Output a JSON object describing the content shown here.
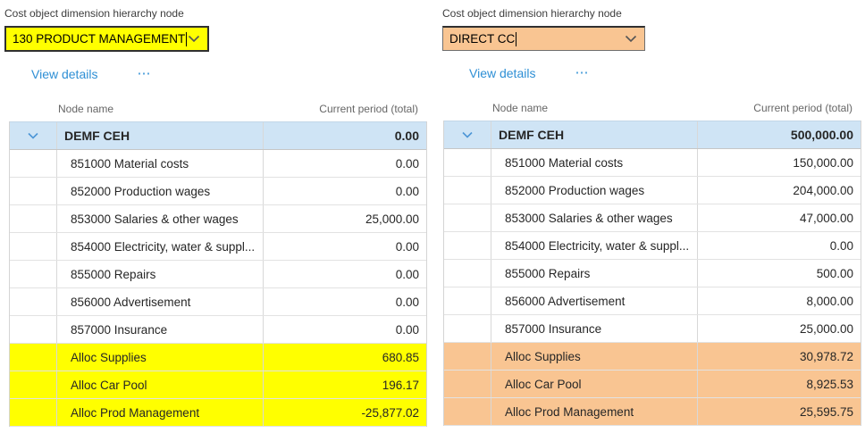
{
  "colors": {
    "link_blue": "#2e8fd5",
    "selected_row_blue": "#cfe4f5",
    "grid_chevron_blue": "#4d96d6",
    "left_highlight": "#ffff00",
    "right_highlight": "#f9c592"
  },
  "icons": {
    "combo_chevron": "chevron-down",
    "row_expand": "chevron-down",
    "more_actions": "ellipsis"
  },
  "panels": [
    {
      "field_label": "Cost object dimension hierarchy node",
      "combo": {
        "value": "130 PRODUCT MANAGEMENT"
      },
      "view_details_label": "View details",
      "more_actions_label": "⋯",
      "highlight_color": "#ffff00",
      "table": {
        "columns": {
          "name": "Node name",
          "amount": "Current period (total)"
        },
        "rows": [
          {
            "name": "DEMF CEH",
            "value": "0.00",
            "type": "root"
          },
          {
            "name": "851000 Material costs",
            "value": "0.00",
            "type": "normal"
          },
          {
            "name": "852000 Production wages",
            "value": "0.00",
            "type": "normal"
          },
          {
            "name": "853000 Salaries & other wages",
            "value": "25,000.00",
            "type": "normal"
          },
          {
            "name": "854000 Electricity, water & suppl...",
            "value": "0.00",
            "type": "normal"
          },
          {
            "name": "855000 Repairs",
            "value": "0.00",
            "type": "normal"
          },
          {
            "name": "856000 Advertisement",
            "value": "0.00",
            "type": "normal"
          },
          {
            "name": "857000 Insurance",
            "value": "0.00",
            "type": "normal"
          },
          {
            "name": "Alloc Supplies",
            "value": "680.85",
            "type": "highlight"
          },
          {
            "name": "Alloc Car Pool",
            "value": "196.17",
            "type": "highlight"
          },
          {
            "name": "Alloc Prod Management",
            "value": "-25,877.02",
            "type": "highlight"
          }
        ]
      }
    },
    {
      "field_label": "Cost object dimension hierarchy node",
      "combo": {
        "value": "DIRECT CC"
      },
      "view_details_label": "View details",
      "more_actions_label": "⋯",
      "highlight_color": "#f9c592",
      "table": {
        "columns": {
          "name": "Node name",
          "amount": "Current period (total)"
        },
        "rows": [
          {
            "name": "DEMF CEH",
            "value": "500,000.00",
            "type": "root"
          },
          {
            "name": "851000 Material costs",
            "value": "150,000.00",
            "type": "normal"
          },
          {
            "name": "852000 Production wages",
            "value": "204,000.00",
            "type": "normal"
          },
          {
            "name": "853000 Salaries & other wages",
            "value": "47,000.00",
            "type": "normal"
          },
          {
            "name": "854000 Electricity, water & suppl...",
            "value": "0.00",
            "type": "normal"
          },
          {
            "name": "855000 Repairs",
            "value": "500.00",
            "type": "normal"
          },
          {
            "name": "856000 Advertisement",
            "value": "8,000.00",
            "type": "normal"
          },
          {
            "name": "857000 Insurance",
            "value": "25,000.00",
            "type": "normal"
          },
          {
            "name": "Alloc Supplies",
            "value": "30,978.72",
            "type": "highlight"
          },
          {
            "name": "Alloc Car Pool",
            "value": "8,925.53",
            "type": "highlight"
          },
          {
            "name": "Alloc Prod Management",
            "value": "25,595.75",
            "type": "highlight"
          }
        ]
      }
    }
  ]
}
